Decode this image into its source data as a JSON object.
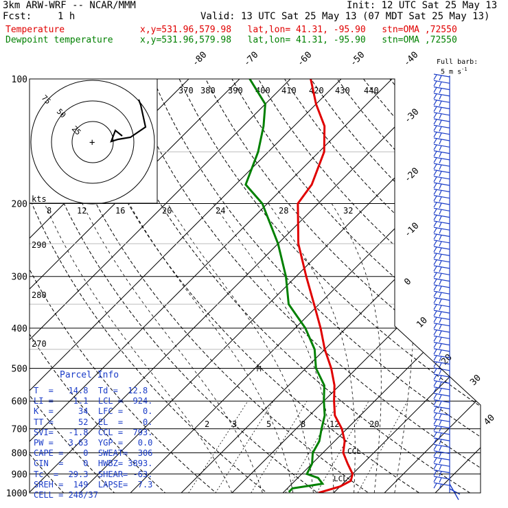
{
  "header": {
    "model": "3km ARW-WRF -- NCAR/MMM",
    "init": "Init: 12 UTC Sat 25 May 13",
    "fcst_label": "Fcst:",
    "fcst_value": "1 h",
    "valid": "Valid: 13 UTC Sat 25 May 13 (07 MDT Sat 25 May 13)",
    "temp_label": "Temperature",
    "temp_loc": "x,y=531.96,579.98   lat,lon= 41.31, -95.90   stn=OMA ,72550",
    "dew_label": "Dewpoint temperature",
    "dew_loc": "x,y=531.96,579.98   lat,lon= 41.31, -95.90   stn=OMA ,72550"
  },
  "colors": {
    "temperature": "#e00000",
    "dewpoint": "#008000",
    "parcel": "#1a3cc8",
    "hodograph": "#000000"
  },
  "barb_legend": {
    "title": "Full barb:",
    "value": "5 m s",
    "exp": "-1"
  },
  "hodograph": {
    "unit_label": "kts",
    "ring_labels": [
      "25",
      "50",
      "75"
    ],
    "storm_motion_marker": "+"
  },
  "parcel_info": {
    "title": "Parcel Info",
    "rows": [
      "T  =   14.8  Td =  12.8",
      "LI =    1.1  LCL =  924.",
      "K  =     34  LFC =    0.",
      "TT =     52  EL  =    0.",
      "SVI=   -1.8  CCL =  793.",
      "PW =   3.63  YGP =   0.0",
      "CAPE =    0  SWEAT=  306",
      "CIN  =    0  HWBZ= 3893.",
      "Tc  =  29.3  SHEAR= -63.",
      "SREH =  149  LAPSE=  7.3",
      "CELL = 248/37"
    ]
  },
  "chart_data": {
    "type": "line",
    "title": "",
    "xlabel": "",
    "ylabel": "",
    "y_scale": "log-pressure (hPa)",
    "pressure_ticks": [
      100,
      200,
      300,
      400,
      500,
      600,
      700,
      800,
      900,
      1000
    ],
    "skewed_isotherm_labels_upper": [
      "-80",
      "-70",
      "-60",
      "-50",
      "-40"
    ],
    "skewed_isotherm_labels_right": [
      "-30",
      "-20",
      "-10",
      "0",
      "10",
      "20",
      "30",
      "40"
    ],
    "theta_e_labels": [
      "370",
      "380",
      "390",
      "400",
      "410",
      "420",
      "430",
      "440"
    ],
    "theta_labels": [
      "290",
      "280",
      "270"
    ],
    "mixing_ratio_labels_top": [
      "8",
      "12",
      "16",
      "20",
      "24",
      "28",
      "32"
    ],
    "mixing_ratio_labels_low": [
      "2",
      "3",
      "5",
      "8",
      "12",
      "20"
    ],
    "annotations": [
      "M",
      "CCL",
      "LCL"
    ],
    "series": [
      {
        "name": "Temperature",
        "pressure": [
          1000,
          965,
          935,
          900,
          850,
          800,
          750,
          700,
          650,
          600,
          550,
          500,
          450,
          400,
          350,
          300,
          250,
          200,
          180,
          150,
          130,
          115,
          100
        ],
        "temp_c": [
          17,
          20,
          21,
          20,
          17,
          14,
          12,
          9,
          5,
          2,
          -1,
          -5,
          -10,
          -15,
          -21,
          -28,
          -36,
          -44,
          -45,
          -49,
          -54,
          -60,
          -66
        ]
      },
      {
        "name": "Dewpoint temperature",
        "pressure": [
          995,
          975,
          950,
          920,
          900,
          850,
          800,
          750,
          700,
          650,
          600,
          550,
          500,
          450,
          400,
          350,
          300,
          250,
          200,
          180,
          150,
          130,
          115,
          100
        ],
        "temp_c": [
          11,
          11,
          16,
          14,
          11,
          10,
          8,
          7,
          5,
          3,
          0,
          -3,
          -8,
          -12,
          -18,
          -26,
          -32,
          -40,
          -51,
          -58,
          -62,
          -66,
          -70,
          -78
        ]
      }
    ],
    "hodograph": [
      [
        0,
        12
      ],
      [
        -10,
        22
      ],
      [
        -25,
        28
      ],
      [
        -40,
        32
      ],
      [
        -30,
        55
      ],
      [
        -25,
        70
      ],
      [
        -20,
        78
      ],
      [
        -30,
        72
      ]
    ]
  }
}
